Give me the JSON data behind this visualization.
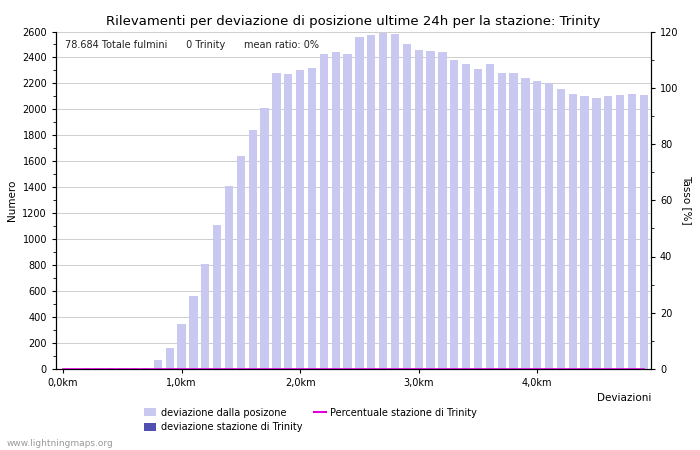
{
  "title": "Rilevamenti per deviazione di posizione ultime 24h per la stazione: Trinity",
  "xlabel": "Deviazioni",
  "ylabel_left": "Numero",
  "ylabel_right": "Tasso [%]",
  "annotation": "78.684 Totale fulmini      0 Trinity      mean ratio: 0%",
  "watermark": "www.lightningmaps.org",
  "ylim_left": [
    0,
    2600
  ],
  "ylim_right": [
    0,
    120
  ],
  "yticks_left": [
    0,
    200,
    400,
    600,
    800,
    1000,
    1200,
    1400,
    1600,
    1800,
    2000,
    2200,
    2400,
    2600
  ],
  "yticks_right": [
    0,
    20,
    40,
    60,
    80,
    100,
    120
  ],
  "xtick_labels": [
    "0,0km",
    "1,0km",
    "2,0km",
    "3,0km",
    "4,0km"
  ],
  "xtick_positions": [
    0,
    10,
    20,
    30,
    40
  ],
  "bar_color_light": "#c8c8f0",
  "bar_color_dark": "#5050b0",
  "line_color": "#dd00dd",
  "bar_width": 0.7,
  "bar_values_light": [
    2,
    3,
    4,
    5,
    5,
    4,
    6,
    5,
    67,
    162,
    350,
    566,
    806,
    1110,
    1410,
    1640,
    1840,
    2010,
    2280,
    2270,
    2300,
    2320,
    2430,
    2440,
    2430,
    2560,
    2570,
    2590,
    2580,
    2500,
    2460,
    2450,
    2440,
    2380,
    2350,
    2310,
    2350,
    2280,
    2280,
    2240,
    2220,
    2200,
    2160,
    2120,
    2100,
    2090,
    2100,
    2110,
    2120,
    2110
  ],
  "bar_values_dark": [
    0,
    0,
    0,
    0,
    0,
    0,
    0,
    0,
    0,
    0,
    0,
    0,
    0,
    0,
    0,
    0,
    0,
    0,
    0,
    0,
    0,
    0,
    0,
    0,
    0,
    0,
    0,
    0,
    0,
    0,
    0,
    0,
    0,
    0,
    0,
    0,
    0,
    0,
    0,
    0,
    0,
    0,
    0,
    0,
    0,
    0,
    0,
    0,
    0,
    0
  ],
  "line_values": [
    0,
    0,
    0,
    0,
    0,
    0,
    0,
    0,
    0,
    0,
    0,
    0,
    0,
    0,
    0,
    0,
    0,
    0,
    0,
    0,
    0,
    0,
    0,
    0,
    0,
    0,
    0,
    0,
    0,
    0,
    0,
    0,
    0,
    0,
    0,
    0,
    0,
    0,
    0,
    0,
    0,
    0,
    0,
    0,
    0,
    0,
    0,
    0,
    0,
    0
  ],
  "n_bars": 50,
  "background_color": "#ffffff",
  "grid_color": "#bbbbbb",
  "title_fontsize": 9.5,
  "label_fontsize": 7.5,
  "tick_fontsize": 7,
  "legend_fontsize": 7,
  "annotation_fontsize": 7
}
